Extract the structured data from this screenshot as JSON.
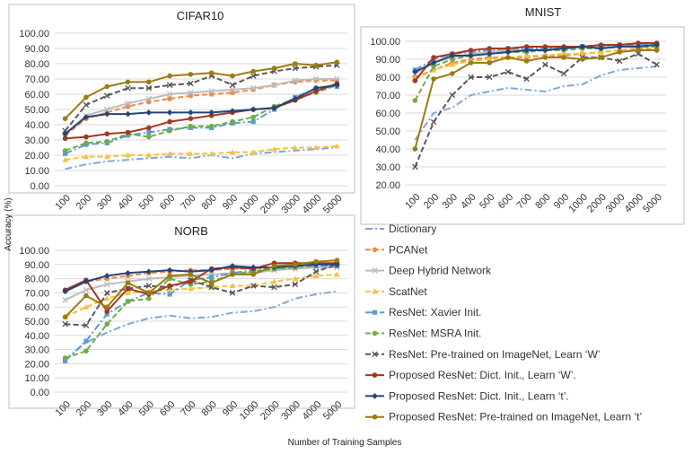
{
  "figure": {
    "ylabel": "Accuracy (%)",
    "xlabel": "Number of Training Samples"
  },
  "series_styles": [
    {
      "name": "Dictionary",
      "color": "#7fa7d9",
      "dash": "8,3,2,3",
      "marker": "none"
    },
    {
      "name": "PCANet",
      "color": "#ed8a4a",
      "dash": "6,3",
      "marker": "circle"
    },
    {
      "name": "Deep Hybrid Network",
      "color": "#bdbdbd",
      "dash": "",
      "marker": "x"
    },
    {
      "name": "ScatNet",
      "color": "#f6c23e",
      "dash": "6,3",
      "marker": "triangle"
    },
    {
      "name": "ResNet: Xavier Init.",
      "color": "#5b9bd5",
      "dash": "8,3,2,3",
      "marker": "square"
    },
    {
      "name": "ResNet: MSRA Init.",
      "color": "#70ad47",
      "dash": "6,3",
      "marker": "circle"
    },
    {
      "name": "ResNet: Pre-trained on ImageNet, Learn ‘W’",
      "color": "#595959",
      "dash": "6,3",
      "marker": "x"
    },
    {
      "name": "Proposed ResNet: Dict. Init., Learn ‘W’.",
      "color": "#a5381f",
      "dash": "",
      "marker": "circle"
    },
    {
      "name": "Proposed ResNet: Dict. Init., Learn ‘t’.",
      "color": "#264478",
      "dash": "",
      "marker": "diamond"
    },
    {
      "name": "Proposed ResNet: Pre-trained on ImageNet, Learn ‘t’",
      "color": "#9c7c10",
      "dash": "",
      "marker": "circle"
    }
  ],
  "chart_data": [
    {
      "type": "line",
      "title": "CIFAR10",
      "x": [
        "100",
        "200",
        "300",
        "400",
        "500",
        "600",
        "700",
        "800",
        "900",
        "1000",
        "2000",
        "3000",
        "4000",
        "5000"
      ],
      "yticks": [
        "0.00",
        "10.00",
        "20.00",
        "30.00",
        "40.00",
        "50.00",
        "60.00",
        "70.00",
        "80.00",
        "90.00",
        "100.00"
      ],
      "ylim": [
        0,
        100
      ],
      "series": [
        {
          "name": "Dictionary",
          "values": [
            11,
            14,
            16,
            17,
            18,
            19,
            18,
            20,
            18,
            21,
            22,
            23,
            24,
            25
          ]
        },
        {
          "name": "PCANet",
          "values": [
            33,
            44,
            48,
            52,
            55,
            57,
            59,
            60,
            61,
            63,
            66,
            68,
            69,
            69
          ]
        },
        {
          "name": "Deep Hybrid Network",
          "values": [
            34,
            46,
            50,
            54,
            57,
            60,
            61,
            62,
            63,
            64,
            66,
            69,
            70,
            70
          ]
        },
        {
          "name": "ScatNet",
          "values": [
            17,
            19,
            19,
            20,
            20,
            21,
            21,
            21,
            22,
            22,
            24,
            25,
            25,
            26
          ]
        },
        {
          "name": "ResNet: Xavier Init.",
          "values": [
            21,
            27,
            28,
            33,
            35,
            37,
            38,
            38,
            41,
            42,
            50,
            58,
            64,
            65
          ]
        },
        {
          "name": "ResNet: MSRA Init.",
          "values": [
            23,
            28,
            29,
            34,
            32,
            36,
            39,
            39,
            42,
            45,
            52,
            57,
            61,
            66
          ]
        },
        {
          "name": "ResNet: Pre-trained on ImageNet, Learn ‘W’",
          "values": [
            36,
            53,
            59,
            64,
            64,
            66,
            67,
            72,
            66,
            72,
            75,
            77,
            78,
            79
          ]
        },
        {
          "name": "Proposed ResNet: Dict. Init., Learn ‘W’.",
          "values": [
            31,
            32,
            34,
            35,
            38,
            42,
            44,
            46,
            48,
            50,
            51,
            56,
            62,
            67
          ]
        },
        {
          "name": "Proposed ResNet: Dict. Init., Learn ‘t’.",
          "values": [
            34,
            45,
            47,
            47,
            48,
            48,
            48,
            48,
            49,
            50,
            51,
            57,
            64,
            66
          ]
        },
        {
          "name": "Proposed ResNet: Pre-trained on ImageNet, Learn ‘t’",
          "values": [
            44,
            58,
            65,
            68,
            68,
            72,
            73,
            74,
            72,
            75,
            77,
            80,
            79,
            81
          ]
        }
      ]
    },
    {
      "type": "line",
      "title": "MNIST",
      "x": [
        "100",
        "200",
        "300",
        "400",
        "500",
        "600",
        "700",
        "800",
        "900",
        "1000",
        "2000",
        "3000",
        "4000",
        "5000"
      ],
      "yticks": [
        "20.00",
        "30.00",
        "40.00",
        "50.00",
        "60.00",
        "70.00",
        "80.00",
        "90.00",
        "100.00"
      ],
      "ylim": [
        20,
        100
      ],
      "series": [
        {
          "name": "Dictionary",
          "values": [
            45,
            60,
            63,
            70,
            72,
            74,
            73,
            72,
            75,
            76,
            81,
            84,
            85,
            86
          ]
        },
        {
          "name": "PCANet",
          "values": [
            80,
            84,
            88,
            90,
            91,
            91,
            91,
            92,
            92,
            93,
            94,
            95,
            96,
            96
          ]
        },
        {
          "name": "Deep Hybrid Network",
          "values": [
            82,
            88,
            91,
            93,
            94,
            95,
            95,
            96,
            96,
            97,
            97,
            98,
            98,
            98
          ]
        },
        {
          "name": "ScatNet",
          "values": [
            79,
            84,
            87,
            89,
            90,
            91,
            92,
            92,
            93,
            93,
            94,
            95,
            95,
            96
          ]
        },
        {
          "name": "ResNet: Xavier Init.",
          "values": [
            84,
            90,
            93,
            94,
            95,
            96,
            96,
            96,
            96,
            97,
            97,
            98,
            98,
            98
          ]
        },
        {
          "name": "ResNet: MSRA Init.",
          "values": [
            67,
            86,
            90,
            92,
            93,
            94,
            94,
            95,
            95,
            96,
            96,
            97,
            97,
            97
          ]
        },
        {
          "name": "ResNet: Pre-trained on ImageNet, Learn ‘W’",
          "values": [
            30,
            55,
            70,
            80,
            80,
            83,
            79,
            87,
            82,
            91,
            91,
            89,
            93,
            87
          ]
        },
        {
          "name": "Proposed ResNet: Dict. Init., Learn ‘W’.",
          "values": [
            78,
            91,
            93,
            95,
            96,
            96,
            97,
            97,
            97,
            97,
            98,
            98,
            99,
            99
          ]
        },
        {
          "name": "Proposed ResNet: Dict. Init., Learn ‘t’.",
          "values": [
            83,
            88,
            92,
            92,
            93,
            94,
            95,
            95,
            96,
            97,
            96,
            97,
            97,
            98
          ]
        },
        {
          "name": "Proposed ResNet: Pre-trained on ImageNet, Learn ‘t’",
          "values": [
            40,
            79,
            82,
            88,
            88,
            91,
            89,
            91,
            91,
            90,
            91,
            94,
            95,
            95
          ]
        }
      ]
    },
    {
      "type": "line",
      "title": "NORB",
      "x": [
        "100",
        "200",
        "300",
        "400",
        "500",
        "600",
        "700",
        "800",
        "900",
        "1000",
        "2000",
        "3000",
        "4000",
        "5000"
      ],
      "yticks": [
        "0.00",
        "10.00",
        "20.00",
        "30.00",
        "40.00",
        "50.00",
        "60.00",
        "70.00",
        "80.00",
        "90.00",
        "100.00"
      ],
      "ylim": [
        0,
        100
      ],
      "series": [
        {
          "name": "Dictionary",
          "values": [
            23,
            35,
            42,
            48,
            52,
            54,
            52,
            53,
            56,
            57,
            60,
            66,
            69,
            71
          ]
        },
        {
          "name": "PCANet",
          "values": [
            72,
            78,
            80,
            82,
            84,
            85,
            86,
            86,
            87,
            87,
            88,
            89,
            90,
            90
          ]
        },
        {
          "name": "Deep Hybrid Network",
          "values": [
            65,
            72,
            76,
            78,
            80,
            81,
            82,
            83,
            84,
            84,
            86,
            87,
            88,
            88
          ]
        },
        {
          "name": "ScatNet",
          "values": [
            53,
            60,
            66,
            70,
            71,
            72,
            73,
            74,
            75,
            75,
            78,
            80,
            82,
            83
          ]
        },
        {
          "name": "ResNet: Xavier Init.",
          "values": [
            22,
            36,
            55,
            64,
            70,
            69,
            79,
            81,
            84,
            86,
            87,
            88,
            89,
            89
          ]
        },
        {
          "name": "ResNet: MSRA Init.",
          "values": [
            24,
            29,
            48,
            64,
            66,
            80,
            76,
            78,
            83,
            85,
            87,
            88,
            90,
            91
          ]
        },
        {
          "name": "ResNet: Pre-trained on ImageNet, Learn ‘W’",
          "values": [
            48,
            47,
            70,
            73,
            75,
            74,
            79,
            74,
            70,
            75,
            74,
            76,
            85,
            90
          ]
        },
        {
          "name": "Proposed ResNet: Dict. Init., Learn ‘W’.",
          "values": [
            72,
            79,
            57,
            73,
            69,
            75,
            78,
            87,
            88,
            87,
            91,
            91,
            91,
            91
          ]
        },
        {
          "name": "Proposed ResNet: Dict. Init., Learn ‘t’.",
          "values": [
            71,
            78,
            82,
            84,
            85,
            86,
            85,
            86,
            89,
            88,
            88,
            89,
            90,
            90
          ]
        },
        {
          "name": "Proposed ResNet: Pre-trained on ImageNet, Learn ‘t’",
          "values": [
            53,
            68,
            60,
            77,
            70,
            82,
            83,
            77,
            83,
            83,
            89,
            90,
            92,
            93
          ]
        }
      ]
    }
  ]
}
